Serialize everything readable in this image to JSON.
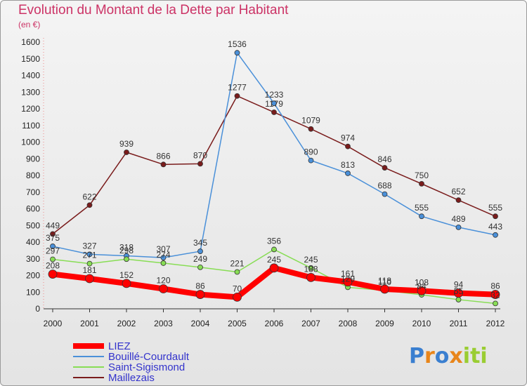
{
  "chart_data": {
    "type": "line",
    "title": "Evolution du Montant de la Dette par Habitant",
    "unit": "(en €)",
    "categories": [
      "2000",
      "2001",
      "2002",
      "2003",
      "2004",
      "2005",
      "2006",
      "2007",
      "2008",
      "2009",
      "2010",
      "2011",
      "2012"
    ],
    "ylim": [
      0,
      1600
    ],
    "yticks": [
      0,
      100,
      200,
      300,
      400,
      500,
      600,
      700,
      800,
      900,
      1000,
      1100,
      1200,
      1300,
      1400,
      1500,
      1600
    ],
    "grid": false,
    "legend_position": "bottom-left",
    "series": [
      {
        "name": "LIEZ",
        "color": "#ff0000",
        "values": [
          208,
          181,
          152,
          120,
          86,
          70,
          245,
          188,
          161,
          118,
          108,
          94,
          86
        ]
      },
      {
        "name": "Bouillé-Courdault",
        "color": "#4a90d9",
        "values": [
          375,
          327,
          318,
          307,
          345,
          1536,
          1233,
          890,
          813,
          688,
          555,
          489,
          443
        ]
      },
      {
        "name": "Saint-Sigismond",
        "color": "#88dd55",
        "values": [
          297,
          271,
          298,
          274,
          249,
          221,
          356,
          245,
          129,
          110,
          84,
          55,
          32
        ]
      },
      {
        "name": "Maillezais",
        "color": "#7a1c1c",
        "values": [
          449,
          622,
          939,
          866,
          870,
          1277,
          1179,
          1079,
          974,
          846,
          750,
          652,
          555
        ]
      }
    ]
  },
  "logo": {
    "text": "Proxiti"
  }
}
